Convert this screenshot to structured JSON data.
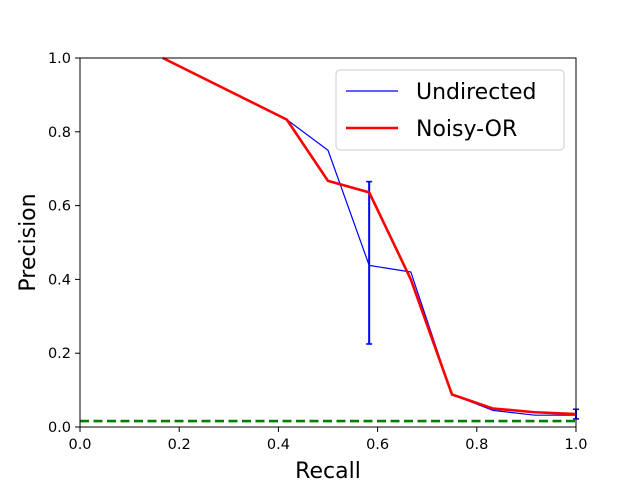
{
  "chart_data": {
    "type": "line",
    "title": "",
    "xlabel": "Recall",
    "ylabel": "Precision",
    "xlim": [
      0.0,
      1.0
    ],
    "ylim": [
      0.0,
      1.0
    ],
    "xticks": [
      "0.0",
      "0.2",
      "0.4",
      "0.6",
      "0.8",
      "1.0"
    ],
    "yticks": [
      "0.0",
      "0.2",
      "0.4",
      "0.6",
      "0.8",
      "1.0"
    ],
    "grid": false,
    "legend_position": "top-right",
    "series": [
      {
        "name": "Undirected",
        "color": "#0000ff",
        "style": "solid-thin",
        "x": [
          0.167,
          0.417,
          0.5,
          0.583,
          0.667,
          0.75,
          0.833,
          0.917,
          1.0
        ],
        "y": [
          1.0,
          0.833,
          0.75,
          0.438,
          0.42,
          0.088,
          0.045,
          0.032,
          0.032
        ],
        "error_bars": [
          {
            "x": 0.583,
            "low": 0.225,
            "high": 0.665
          },
          {
            "x": 1.0,
            "low": 0.022,
            "high": 0.048
          }
        ]
      },
      {
        "name": "Noisy-OR",
        "color": "#ff0000",
        "style": "solid-thick",
        "x": [
          0.167,
          0.417,
          0.5,
          0.583,
          0.667,
          0.75,
          0.833,
          0.917,
          1.0
        ],
        "y": [
          1.0,
          0.833,
          0.667,
          0.636,
          0.4,
          0.088,
          0.05,
          0.04,
          0.035
        ]
      },
      {
        "name": "",
        "color": "#008000",
        "style": "dashed",
        "x": [
          0.0,
          1.0
        ],
        "y": [
          0.016,
          0.016
        ]
      }
    ]
  }
}
